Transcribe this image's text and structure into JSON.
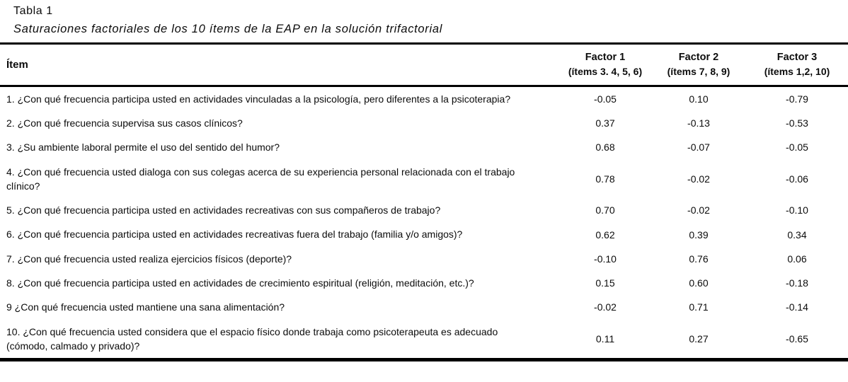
{
  "table": {
    "label": "Tabla 1",
    "title": "Saturaciones factoriales de los 10 ítems de la EAP en la solución trifactorial",
    "header": {
      "item": "Ítem",
      "factors": [
        {
          "name": "Factor 1",
          "items": "(ítems 3. 4, 5, 6)"
        },
        {
          "name": "Factor 2",
          "items": "(ítems 7, 8, 9)"
        },
        {
          "name": "Factor 3",
          "items": "(ítems 1,2, 10)"
        }
      ]
    },
    "rows": [
      {
        "item": "1. ¿Con qué frecuencia participa usted en actividades vinculadas a la psicología, pero diferentes a la psicoterapia?",
        "f1": "-0.05",
        "f2": "0.10",
        "f3": "-0.79"
      },
      {
        "item": "2. ¿Con qué frecuencia supervisa sus casos clínicos?",
        "f1": "0.37",
        "f2": "-0.13",
        "f3": "-0.53"
      },
      {
        "item": "3. ¿Su ambiente laboral permite el uso del sentido del humor?",
        "f1": "0.68",
        "f2": "-0.07",
        "f3": "-0.05"
      },
      {
        "item": "4. ¿Con qué frecuencia usted dialoga con sus colegas acerca de su experiencia personal relacionada con el trabajo clínico?",
        "f1": "0.78",
        "f2": "-0.02",
        "f3": "-0.06"
      },
      {
        "item": "5. ¿Con qué frecuencia participa usted en actividades recreativas con sus compañeros de trabajo?",
        "f1": "0.70",
        "f2": "-0.02",
        "f3": "-0.10"
      },
      {
        "item": "6. ¿Con qué frecuencia participa usted en actividades recreativas fuera del trabajo (familia y/o amigos)?",
        "f1": "0.62",
        "f2": "0.39",
        "f3": "0.34"
      },
      {
        "item": "7. ¿Con qué frecuencia usted realiza ejercicios físicos (deporte)?",
        "f1": "-0.10",
        "f2": "0.76",
        "f3": "0.06"
      },
      {
        "item": "8. ¿Con qué frecuencia participa usted en actividades de crecimiento espiritual (religión, meditación, etc.)?",
        "f1": "0.15",
        "f2": "0.60",
        "f3": "-0.18"
      },
      {
        "item": "9 ¿Con qué frecuencia usted mantiene una sana alimentación?",
        "f1": "-0.02",
        "f2": "0.71",
        "f3": "-0.14"
      },
      {
        "item": "10. ¿Con qué frecuencia usted considera que el espacio físico donde trabaja como psicoterapeuta es adecuado (cómodo, calmado y privado)?",
        "f1": "0.11",
        "f2": "0.27",
        "f3": "-0.65"
      }
    ]
  }
}
